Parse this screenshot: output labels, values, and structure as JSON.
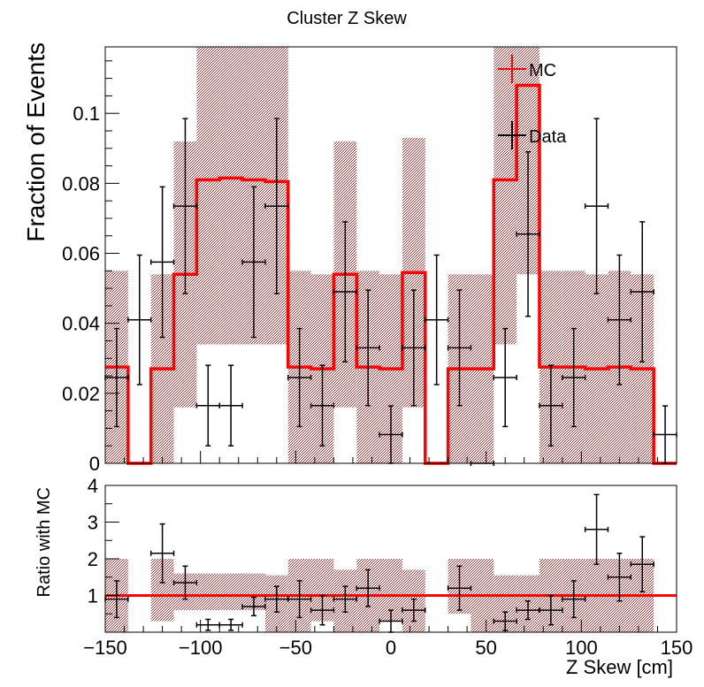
{
  "chart_data": {
    "type": "histogram_with_ratio",
    "title": "Cluster Z Skew",
    "xlabel": "Z Skew [cm]",
    "xlim": [
      -150,
      150
    ],
    "x_ticks": [
      -150,
      -100,
      -50,
      0,
      50,
      100,
      150
    ],
    "x_tick_labels": [
      "−150",
      "−100",
      "−50",
      "0",
      "50",
      "100",
      "150"
    ],
    "bin_edges": [
      -150,
      -138,
      -126,
      -114,
      -102,
      -90,
      -78,
      -66,
      -54,
      -42,
      -30,
      -18,
      -6,
      6,
      18,
      30,
      42,
      54,
      66,
      78,
      90,
      102,
      114,
      126,
      138,
      150
    ],
    "main": {
      "ylabel": "Fraction of Events",
      "ylim": [
        0,
        0.119
      ],
      "y_ticks": [
        0,
        0.02,
        0.04,
        0.06,
        0.08,
        0.1
      ],
      "y_tick_labels": [
        "0",
        "0.02",
        "0.04",
        "0.06",
        "0.08",
        "0.1"
      ],
      "mc": {
        "name": "MC",
        "color": "#ff0000",
        "values": [
          0.0275,
          0,
          0.027,
          0.054,
          0.081,
          0.0815,
          0.081,
          0.0805,
          0.0275,
          0.027,
          0.054,
          0.0275,
          0.027,
          0.0545,
          0,
          0.027,
          0.027,
          0.081,
          0.108,
          0.0275,
          0.0275,
          0.027,
          0.0275,
          0.027,
          0
        ],
        "band_low": [
          0,
          0,
          0.0,
          0.016,
          0.034,
          0.034,
          0.034,
          0.034,
          0,
          0.0,
          0.016,
          0,
          0,
          0.016,
          0,
          0.0,
          0.0,
          0.034,
          0.054,
          0.0,
          0.0,
          0.0,
          0.0,
          0.0,
          0
        ],
        "band_high": [
          0.055,
          0,
          0.054,
          0.092,
          0.119,
          0.119,
          0.119,
          0.119,
          0.055,
          0.054,
          0.092,
          0.055,
          0.054,
          0.093,
          0,
          0.054,
          0.054,
          0.119,
          0.119,
          0.055,
          0.055,
          0.054,
          0.055,
          0.054,
          0
        ],
        "band_color": "#c46a6a"
      },
      "data": {
        "name": "Data",
        "color": "#000000",
        "x": [
          -144,
          -132,
          -120,
          -108,
          -96,
          -84,
          -72,
          -60,
          -48,
          -36,
          -24,
          -12,
          0,
          12,
          24,
          36,
          48,
          60,
          72,
          84,
          96,
          108,
          120,
          132,
          144
        ],
        "values": [
          0.0245,
          0.041,
          0.0575,
          0.0735,
          0.0165,
          0.0165,
          0.0575,
          0.0735,
          0.0245,
          0.0165,
          0.049,
          0.033,
          0.0082,
          0.033,
          0.041,
          0.033,
          0,
          0.0245,
          0.0655,
          0.0165,
          0.0245,
          0.0735,
          0.041,
          0.049,
          0.0082
        ],
        "err": [
          0.014,
          0.0185,
          0.0215,
          0.025,
          0.0115,
          0.0115,
          0.0215,
          0.025,
          0.014,
          0.0115,
          0.02,
          0.0165,
          0.0082,
          0.0165,
          0.0185,
          0.0165,
          0,
          0.014,
          0.0235,
          0.0115,
          0.014,
          0.025,
          0.0185,
          0.02,
          0.0082
        ]
      },
      "legend": {
        "position": "top-right",
        "entries": [
          "MC",
          "Data"
        ]
      }
    },
    "ratio": {
      "ylabel": "Ratio with MC",
      "ylim": [
        0,
        4
      ],
      "y_ticks": [
        1,
        2,
        3,
        4
      ],
      "y_tick_labels": [
        "1",
        "2",
        "3",
        "4"
      ],
      "reference_line": 1,
      "x": [
        -144,
        -120,
        -108,
        -96,
        -84,
        -72,
        -60,
        -48,
        -36,
        -24,
        -12,
        0,
        12,
        36,
        60,
        72,
        84,
        96,
        108,
        120,
        132
      ],
      "values": [
        0.9,
        2.15,
        1.35,
        0.2,
        0.2,
        0.7,
        0.9,
        0.9,
        0.6,
        0.9,
        1.2,
        0.3,
        0.6,
        1.2,
        0.3,
        0.6,
        0.6,
        0.9,
        2.8,
        1.5,
        1.85
      ],
      "err": [
        0.5,
        0.8,
        0.45,
        0.15,
        0.15,
        0.25,
        0.35,
        0.5,
        0.4,
        0.35,
        0.5,
        0.3,
        0.3,
        0.6,
        0.25,
        0.25,
        0.4,
        0.5,
        0.95,
        0.65,
        0.75
      ],
      "band_low": [
        0.0,
        0,
        0.3,
        0.6,
        0.6,
        0.6,
        0.6,
        0.0,
        0.0,
        0.3,
        0.0,
        0.0,
        0.3,
        0.0,
        0.0,
        0.5,
        0.0,
        0.0,
        0.0,
        0.0,
        0.0,
        0.0,
        0.0,
        0.0,
        0
      ],
      "band_high": [
        2.0,
        0,
        2.0,
        1.6,
        1.6,
        1.6,
        1.6,
        1.55,
        2.0,
        2.0,
        1.7,
        2.0,
        2.0,
        1.7,
        0,
        2.0,
        2.0,
        1.55,
        1.55,
        2.0,
        2.0,
        2.0,
        2.0,
        2.0,
        0
      ]
    }
  }
}
